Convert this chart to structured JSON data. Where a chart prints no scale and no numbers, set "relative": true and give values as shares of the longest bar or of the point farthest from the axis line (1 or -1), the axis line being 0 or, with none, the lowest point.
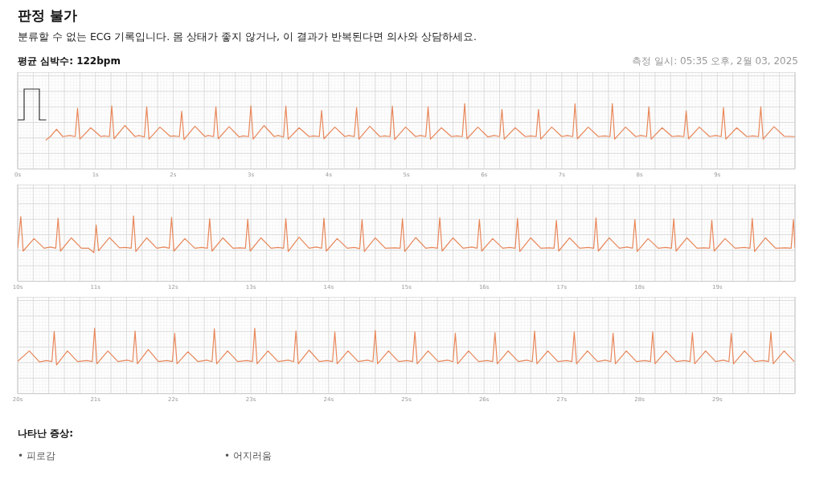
{
  "chart_data": [
    {
      "type": "line",
      "title": "판정 불가",
      "subtitle": "분류할 수 없는 ECG 기록입니다. 몸 상태가 좋지 않거나, 이 결과가 반복된다면 의사와 상담하세요.",
      "annotations": [
        "평균 심박수: 122bpm",
        "측정 일시: 05:35 오후, 2월 03, 2025"
      ],
      "relative": true,
      "grid": true,
      "marker": "none",
      "line_style": "solid",
      "legend": false,
      "xlim": [
        0,
        10
      ],
      "xticks": [
        {
          "value": 0,
          "label": "0s"
        },
        {
          "value": 1,
          "label": "1s"
        },
        {
          "value": 2,
          "label": "2s"
        },
        {
          "value": 3,
          "label": "3s"
        },
        {
          "value": 4,
          "label": "4s"
        },
        {
          "value": 5,
          "label": "5s"
        },
        {
          "value": 6,
          "label": "6s"
        },
        {
          "value": 7,
          "label": "7s"
        },
        {
          "value": 8,
          "label": "8s"
        },
        {
          "value": 9,
          "label": "9s"
        }
      ],
      "series": [
        {
          "color": "#e8875a",
          "x": [
            0.36,
            0.42,
            0.5,
            0.58,
            0.67,
            0.74,
            0.77,
            0.8,
            0.94,
            1.07,
            1.11,
            1.18,
            1.21,
            1.24,
            1.38,
            1.51,
            1.56,
            1.63,
            1.66,
            1.69,
            1.83,
            1.96,
            2.01,
            2.08,
            2.11,
            2.14,
            2.28,
            2.41,
            2.45,
            2.52,
            2.55,
            2.58,
            2.72,
            2.85,
            2.9,
            2.97,
            3.0,
            3.03,
            3.17,
            3.3,
            3.35,
            3.42,
            3.45,
            3.48,
            3.62,
            3.75,
            3.81,
            3.88,
            3.91,
            3.94,
            4.08,
            4.21,
            4.26,
            4.33,
            4.36,
            4.39,
            4.53,
            4.66,
            4.72,
            4.79,
            4.82,
            4.85,
            4.99,
            5.12,
            5.18,
            5.25,
            5.28,
            5.31,
            5.45,
            5.58,
            5.65,
            5.72,
            5.75,
            5.78,
            5.92,
            6.05,
            6.13,
            6.2,
            6.23,
            6.26,
            6.4,
            6.53,
            6.6,
            6.67,
            6.7,
            6.73,
            6.87,
            7.0,
            7.07,
            7.14,
            7.17,
            7.2,
            7.34,
            7.47,
            7.55,
            7.62,
            7.65,
            7.68,
            7.82,
            7.95,
            8.02,
            8.09,
            8.12,
            8.15,
            8.29,
            8.42,
            8.5,
            8.57,
            8.6,
            8.63,
            8.77,
            8.9,
            8.98,
            9.05,
            9.08,
            9.11,
            9.25,
            9.38,
            9.46,
            9.53,
            9.56,
            9.59,
            9.73,
            9.86,
            10.0
          ],
          "values": [
            0,
            0.1,
            0.3,
            0.1,
            0.13,
            0.1,
            0.87,
            0.03,
            0.34,
            0.1,
            0.12,
            0.1,
            0.94,
            0.04,
            0.4,
            0.1,
            0.13,
            0.09,
            0.91,
            0.03,
            0.36,
            0.11,
            0.12,
            0.1,
            0.79,
            0.02,
            0.38,
            0.1,
            0.13,
            0.1,
            0.91,
            0.04,
            0.37,
            0.09,
            0.12,
            0.1,
            0.94,
            0.03,
            0.4,
            0.1,
            0.13,
            0.09,
            0.93,
            0.03,
            0.34,
            0.1,
            0.12,
            0.1,
            0.81,
            0.04,
            0.36,
            0.1,
            0.13,
            0.1,
            0.89,
            0.03,
            0.38,
            0.1,
            0.12,
            0.1,
            0.93,
            0.02,
            0.36,
            0.1,
            0.13,
            0.1,
            0.91,
            0.03,
            0.34,
            0.1,
            0.12,
            0.1,
            1,
            0.04,
            0.36,
            0.09,
            0.13,
            0.1,
            0.84,
            0.03,
            0.34,
            0.1,
            0.12,
            0.1,
            0.84,
            0.03,
            0.36,
            0.1,
            0.13,
            0.1,
            0.99,
            0.04,
            0.36,
            0.1,
            0.12,
            0.1,
            1,
            0.03,
            0.36,
            0.1,
            0.13,
            0.1,
            0.91,
            0.03,
            0.34,
            0.1,
            0.12,
            0.1,
            0.8,
            0.04,
            0.36,
            0.1,
            0.13,
            0.1,
            0.89,
            0.03,
            0.34,
            0.1,
            0.12,
            0.1,
            0.91,
            0.03,
            0.37,
            0.11,
            0.1
          ]
        }
      ]
    },
    {
      "type": "line",
      "relative": true,
      "grid": true,
      "marker": "none",
      "line_style": "solid",
      "legend": false,
      "xlim": [
        10,
        20
      ],
      "xticks": [
        {
          "value": 10,
          "label": "10s"
        },
        {
          "value": 11,
          "label": "11s"
        },
        {
          "value": 12,
          "label": "12s"
        },
        {
          "value": 13,
          "label": "13s"
        },
        {
          "value": 14,
          "label": "14s"
        },
        {
          "value": 15,
          "label": "15s"
        },
        {
          "value": 16,
          "label": "16s"
        },
        {
          "value": 17,
          "label": "17s"
        },
        {
          "value": 18,
          "label": "18s"
        },
        {
          "value": 19,
          "label": "19s"
        }
      ],
      "series": [
        {
          "color": "#e8875a",
          "x": [
            10.0,
            10.04,
            10.07,
            10.21,
            10.34,
            10.42,
            10.49,
            10.52,
            10.55,
            10.69,
            10.82,
            10.91,
            10.98,
            11.01,
            11.04,
            11.18,
            11.31,
            11.39,
            11.46,
            11.49,
            11.52,
            11.66,
            11.79,
            11.88,
            11.95,
            11.98,
            12.01,
            12.15,
            12.28,
            12.37,
            12.44,
            12.47,
            12.5,
            12.64,
            12.77,
            12.86,
            12.93,
            12.96,
            12.99,
            13.13,
            13.26,
            13.35,
            13.42,
            13.45,
            13.48,
            13.62,
            13.75,
            13.84,
            13.91,
            13.94,
            13.97,
            14.11,
            14.24,
            14.33,
            14.4,
            14.43,
            14.46,
            14.6,
            14.73,
            14.85,
            14.92,
            14.95,
            14.98,
            15.12,
            15.25,
            15.33,
            15.4,
            15.43,
            15.46,
            15.6,
            15.73,
            15.84,
            15.91,
            15.94,
            15.97,
            16.11,
            16.24,
            16.33,
            16.4,
            16.43,
            16.46,
            16.6,
            16.73,
            16.83,
            16.9,
            16.93,
            16.96,
            17.1,
            17.23,
            17.34,
            17.41,
            17.44,
            17.47,
            17.61,
            17.74,
            17.84,
            17.91,
            17.94,
            17.97,
            18.11,
            18.24,
            18.34,
            18.41,
            18.44,
            18.47,
            18.61,
            18.74,
            18.83,
            18.9,
            18.93,
            18.96,
            19.1,
            19.23,
            19.35,
            19.42,
            19.45,
            19.48,
            19.62,
            19.75,
            19.88,
            19.95,
            19.98,
            20.0
          ],
          "values": [
            0.12,
            0.98,
            0.04,
            0.38,
            0.12,
            0.15,
            0.12,
            0.94,
            0.04,
            0.4,
            0.12,
            0.12,
            0,
            0.75,
            0.05,
            0.41,
            0.13,
            0.14,
            0.12,
            1,
            0.03,
            0.4,
            0.12,
            0.15,
            0.12,
            0.96,
            0.04,
            0.38,
            0.12,
            0.14,
            0.12,
            0.92,
            0.04,
            0.4,
            0.12,
            0.13,
            0.12,
            0.91,
            0.04,
            0.4,
            0.12,
            0.14,
            0.12,
            0.92,
            0.03,
            0.42,
            0.12,
            0.15,
            0.12,
            0.94,
            0.04,
            0.38,
            0.12,
            0.14,
            0.11,
            0.9,
            0.03,
            0.4,
            0.12,
            0.13,
            0.12,
            0.92,
            0.03,
            0.41,
            0.12,
            0.14,
            0.12,
            0.95,
            0.04,
            0.4,
            0.12,
            0.15,
            0.12,
            0.9,
            0.04,
            0.38,
            0.12,
            0.14,
            0.12,
            0.93,
            0.03,
            0.4,
            0.12,
            0.13,
            0.12,
            0.88,
            0.04,
            0.4,
            0.12,
            0.14,
            0.12,
            0.95,
            0.04,
            0.4,
            0.12,
            0.15,
            0.12,
            0.9,
            0.03,
            0.38,
            0.12,
            0.14,
            0.12,
            0.92,
            0.04,
            0.4,
            0.12,
            0.13,
            0.12,
            0.88,
            0.04,
            0.38,
            0.12,
            0.14,
            0.12,
            0.93,
            0.03,
            0.4,
            0.12,
            0.13,
            0.12,
            0.9,
            0.12
          ]
        }
      ]
    },
    {
      "type": "line",
      "relative": true,
      "grid": true,
      "marker": "none",
      "line_style": "solid",
      "legend": false,
      "annotations": [
        "나타난 증상:",
        "• 피로감",
        "• 어지러움"
      ],
      "xlim": [
        20,
        30
      ],
      "xticks": [
        {
          "value": 20,
          "label": "20s"
        },
        {
          "value": 21,
          "label": "21s"
        },
        {
          "value": 22,
          "label": "22s"
        },
        {
          "value": 23,
          "label": "23s"
        },
        {
          "value": 24,
          "label": "24s"
        },
        {
          "value": 25,
          "label": "25s"
        },
        {
          "value": 26,
          "label": "26s"
        },
        {
          "value": 27,
          "label": "27s"
        },
        {
          "value": 28,
          "label": "28s"
        },
        {
          "value": 29,
          "label": "29s"
        }
      ],
      "series": [
        {
          "color": "#e8875a",
          "x": [
            20.0,
            20.15,
            20.28,
            20.37,
            20.44,
            20.47,
            20.5,
            20.64,
            20.77,
            20.89,
            20.96,
            20.99,
            21.02,
            21.16,
            21.29,
            21.41,
            21.48,
            21.51,
            21.54,
            21.68,
            21.81,
            21.92,
            21.99,
            22.02,
            22.05,
            22.19,
            22.32,
            22.43,
            22.5,
            22.53,
            22.56,
            22.7,
            22.83,
            22.95,
            23.02,
            23.05,
            23.08,
            23.22,
            23.35,
            23.48,
            23.55,
            23.58,
            23.61,
            23.75,
            23.88,
            23.98,
            24.05,
            24.08,
            24.11,
            24.25,
            24.38,
            24.5,
            24.57,
            24.6,
            24.63,
            24.77,
            24.9,
            25.01,
            25.08,
            25.11,
            25.14,
            25.28,
            25.41,
            25.53,
            25.6,
            25.63,
            25.66,
            25.8,
            25.93,
            26.04,
            26.11,
            26.14,
            26.17,
            26.31,
            26.44,
            26.55,
            26.62,
            26.65,
            26.68,
            26.82,
            26.95,
            27.06,
            27.13,
            27.16,
            27.19,
            27.33,
            27.46,
            27.56,
            27.63,
            27.66,
            27.69,
            27.83,
            27.96,
            28.07,
            28.14,
            28.17,
            28.2,
            28.34,
            28.47,
            28.58,
            28.65,
            28.68,
            28.71,
            28.85,
            28.98,
            29.08,
            29.15,
            29.18,
            29.21,
            29.35,
            29.48,
            29.59,
            29.66,
            29.69,
            29.72,
            29.86,
            29.99
          ],
          "values": [
            0.1,
            0.38,
            0.08,
            0.12,
            0.09,
            0.91,
            0,
            0.38,
            0.09,
            0.12,
            0.09,
            1,
            0.03,
            0.38,
            0.09,
            0.13,
            0.09,
            0.92,
            0.03,
            0.42,
            0.09,
            0.12,
            0.09,
            0.86,
            0.03,
            0.36,
            0.09,
            0.13,
            0.09,
            0.98,
            0.03,
            0.38,
            0.09,
            0.12,
            0.09,
            1,
            0.03,
            0.38,
            0.09,
            0.13,
            0.09,
            0.92,
            0.03,
            0.4,
            0.09,
            0.12,
            0.09,
            0.9,
            0.03,
            0.38,
            0.09,
            0.13,
            0.09,
            0.94,
            0.03,
            0.38,
            0.09,
            0.12,
            0.09,
            0.9,
            0.03,
            0.38,
            0.09,
            0.13,
            0.09,
            0.86,
            0.03,
            0.38,
            0.09,
            0.12,
            0.09,
            0.88,
            0.03,
            0.38,
            0.09,
            0.13,
            0.09,
            0.92,
            0.03,
            0.38,
            0.09,
            0.12,
            0.09,
            0.9,
            0.03,
            0.38,
            0.09,
            0.13,
            0.09,
            0.86,
            0.03,
            0.38,
            0.09,
            0.12,
            0.09,
            0.9,
            0.03,
            0.38,
            0.09,
            0.12,
            0.09,
            0.88,
            0.03,
            0.38,
            0.09,
            0.13,
            0.09,
            0.86,
            0.03,
            0.38,
            0.09,
            0.12,
            0.09,
            0.9,
            0.03,
            0.38,
            0.09
          ]
        }
      ]
    }
  ]
}
